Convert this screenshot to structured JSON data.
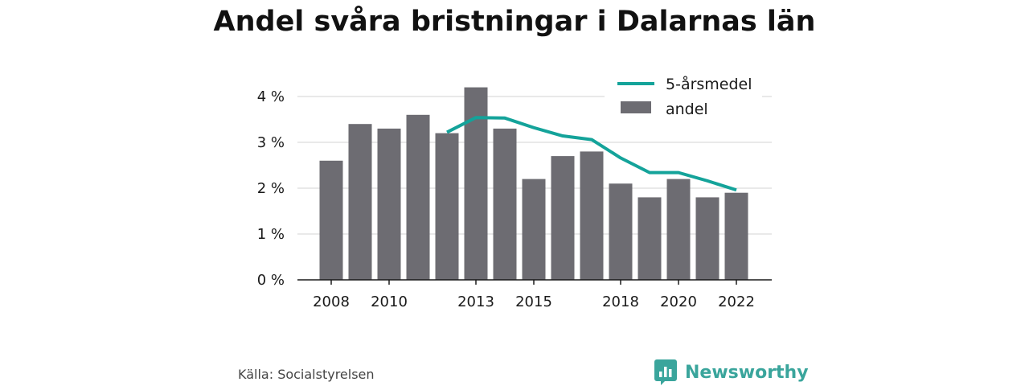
{
  "chart_data": {
    "type": "bar",
    "title": "Andel svåra bristningar i Dalarnas län",
    "x": [
      2008,
      2009,
      2010,
      2011,
      2012,
      2013,
      2014,
      2015,
      2016,
      2017,
      2018,
      2019,
      2020,
      2021,
      2022
    ],
    "x_tick_labels": [
      "2008",
      "2010",
      "2013",
      "2015",
      "2018",
      "2020",
      "2022"
    ],
    "x_tick_values": [
      2008,
      2010,
      2013,
      2015,
      2018,
      2020,
      2022
    ],
    "y_tick_labels": [
      "0 %",
      "1 %",
      "2 %",
      "3 %",
      "4 %"
    ],
    "y_tick_values": [
      0,
      1,
      2,
      3,
      4
    ],
    "ylim": [
      0,
      4.4
    ],
    "grid": true,
    "legend_position": "top-right",
    "series": [
      {
        "name": "andel",
        "kind": "bar",
        "color": "#6d6c72",
        "values": [
          2.6,
          3.4,
          3.3,
          3.6,
          3.2,
          4.2,
          3.3,
          2.2,
          2.7,
          2.8,
          2.1,
          1.8,
          2.2,
          1.8,
          1.9
        ]
      },
      {
        "name": "5-årsmedel",
        "kind": "line",
        "color": "#14a39a",
        "x": [
          2012,
          2013,
          2014,
          2015,
          2016,
          2017,
          2018,
          2019,
          2020,
          2021,
          2022
        ],
        "values": [
          3.22,
          3.54,
          3.53,
          3.32,
          3.14,
          3.06,
          2.66,
          2.34,
          2.34,
          2.16,
          1.96
        ]
      }
    ]
  },
  "source": "Källa: Socialstyrelsen",
  "brand": {
    "name": "Newsworthy",
    "color": "#3aa59c",
    "icon": "newsworthy-logo-icon"
  }
}
